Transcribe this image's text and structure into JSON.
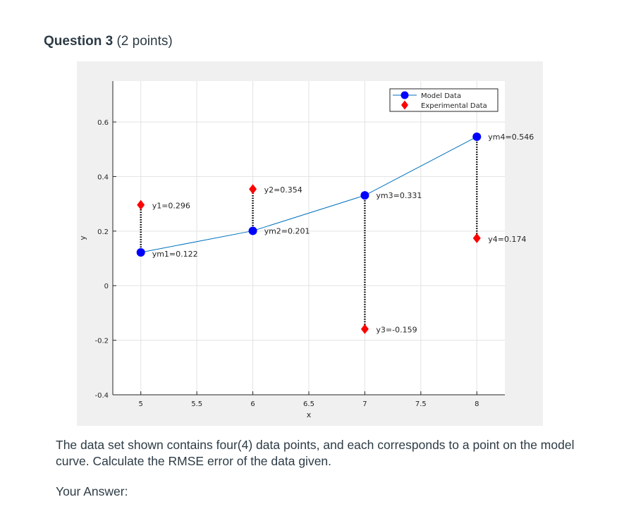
{
  "question": {
    "title": "Question 3",
    "points": "(2 points)",
    "prompt": "The data set shown contains four(4) data points, and each corresponds to a point on the model curve. Calculate the RMSE error of the data given.",
    "answer_label": "Your Answer:"
  },
  "chart_data": {
    "type": "line",
    "xlabel": "x",
    "ylabel": "y",
    "xlim": [
      4.75,
      8.25
    ],
    "ylim": [
      -0.4,
      0.75
    ],
    "xticks": [
      5,
      5.5,
      6,
      6.5,
      7,
      7.5,
      8
    ],
    "xtick_labels": [
      "5",
      "5.5",
      "6",
      "6.5",
      "7",
      "7.5",
      "8"
    ],
    "yticks": [
      -0.4,
      -0.2,
      0,
      0.2,
      0.4,
      0.6
    ],
    "ytick_labels": [
      "-0.4",
      "-0.2",
      "0",
      "0.2",
      "0.4",
      "0.6"
    ],
    "grid": true,
    "legend_position": "top-right",
    "series": [
      {
        "name": "Model Data",
        "marker": "circle",
        "color": "#0000ff",
        "line_color": "#0072bd",
        "x": [
          5,
          6,
          7,
          8
        ],
        "y": [
          0.122,
          0.201,
          0.331,
          0.546
        ],
        "labels": [
          "ym1=0.122",
          "ym2=0.201",
          "ym3=0.331",
          "ym4=0.546"
        ]
      },
      {
        "name": "Experimental Data",
        "marker": "diamond",
        "color": "#ff0000",
        "x": [
          5,
          6,
          7,
          8
        ],
        "y": [
          0.296,
          0.354,
          -0.159,
          0.174
        ],
        "labels": [
          "y1=0.296",
          "y2=0.354",
          "y3=-0.159",
          "y4=0.174"
        ]
      }
    ]
  }
}
